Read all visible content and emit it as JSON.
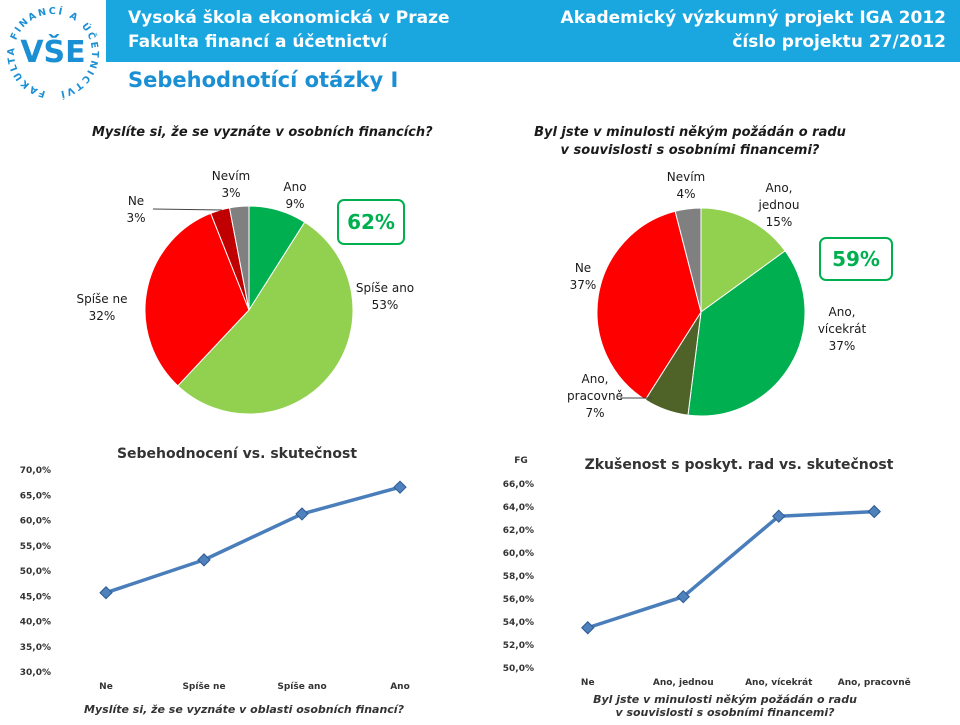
{
  "header": {
    "school": "Vysoká škola ekonomická v Praze",
    "faculty": "Fakulta financí a účetnictví",
    "project": "Akademický výzkumný projekt IGA 2012",
    "project_no": "číslo projektu 27/2012"
  },
  "logo": {
    "text": "VŠE",
    "ring_text": "FAKULTA FINANCÍ A ÚČETNICTVÍ"
  },
  "slide_title": "Sebehodnotící otázky I",
  "colors": {
    "header": "#1aa6df",
    "title": "#1a8fd4",
    "green": "#00b050",
    "light_green": "#92d050",
    "red": "#ff0000",
    "dark_red": "#c00000",
    "gray": "#808080",
    "olive": "#4f6228",
    "line": "#4a7ebb"
  },
  "chart_data": [
    {
      "type": "pie",
      "title": "Myslíte si, že se vyznáte v osobních financích?",
      "slices": [
        {
          "label": "Ano",
          "value": 9,
          "label_text": "9%",
          "color": "#00b050"
        },
        {
          "label": "Spíše ano",
          "value": 53,
          "label_text": "53%",
          "color": "#92d050"
        },
        {
          "label": "Spíše ne",
          "value": 32,
          "label_text": "32%",
          "color": "#ff0000"
        },
        {
          "label": "Ne",
          "value": 3,
          "label_text": "3%",
          "color": "#c00000"
        },
        {
          "label": "Nevím",
          "value": 3,
          "label_text": "3%",
          "color": "#808080"
        }
      ],
      "badge": "62%"
    },
    {
      "type": "pie",
      "title": "Byl jste v minulosti někým požádán o radu v souvislosti s osobními financemi?",
      "title_lines": [
        "Byl jste v minulosti někým požádán o radu",
        "v souvislosti s osobními financemi?"
      ],
      "slices": [
        {
          "label": "Ano, jednou",
          "label_lines": [
            "Ano,",
            "jednou"
          ],
          "value": 15,
          "label_text": "15%",
          "color": "#92d050"
        },
        {
          "label": "Ano, vícekrát",
          "label_lines": [
            "Ano,",
            "vícekrát"
          ],
          "value": 37,
          "label_text": "37%",
          "color": "#00b050"
        },
        {
          "label": "Ano, pracovně",
          "label_lines": [
            "Ano,",
            "pracovně"
          ],
          "value": 7,
          "label_text": "7%",
          "color": "#4f6228"
        },
        {
          "label": "Ne",
          "label_lines": [
            "Ne"
          ],
          "value": 37,
          "label_text": "37%",
          "color": "#ff0000"
        },
        {
          "label": "Nevím",
          "label_lines": [
            "Nevím"
          ],
          "value": 4,
          "label_text": "4%",
          "color": "#808080"
        }
      ],
      "badge": "59%"
    },
    {
      "type": "line",
      "title": "Sebehodnocení vs. skutečnost",
      "xlabel": "Myslíte si, že se vyznáte v oblasti osobních financí?",
      "categories": [
        "Ne",
        "Spíše ne",
        "Spíše ano",
        "Ano"
      ],
      "series": [
        {
          "values": [
            45.7,
            52.2,
            61.3,
            66.6
          ]
        }
      ],
      "ylim": [
        30,
        70
      ],
      "yticks": [
        "30,0%",
        "35,0%",
        "40,0%",
        "45,0%",
        "50,0%",
        "55,0%",
        "60,0%",
        "65,0%",
        "70,0%"
      ]
    },
    {
      "type": "line",
      "title": "Zkušenost s poskyt. rad vs. skutečnost",
      "ylabel": "FG",
      "xlabel_lines": [
        "Byl jste v minulosti někým požádán o radu",
        "v souvislosti s osobními financemi?"
      ],
      "categories": [
        "Ne",
        "Ano, jednou",
        "Ano, vícekrát",
        "Ano, pracovně"
      ],
      "series": [
        {
          "values": [
            53.5,
            56.2,
            63.2,
            63.6
          ]
        }
      ],
      "ylim": [
        50,
        66
      ],
      "yticks": [
        "50,0%",
        "52,0%",
        "54,0%",
        "56,0%",
        "58,0%",
        "60,0%",
        "62,0%",
        "64,0%",
        "66,0%"
      ]
    }
  ]
}
